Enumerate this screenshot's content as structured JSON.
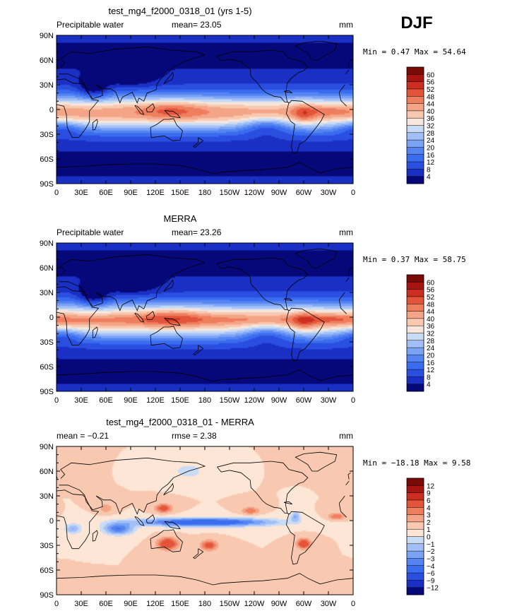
{
  "season": "DJF",
  "chart_data": [
    {
      "type": "heatmap",
      "title": "test_mg4_f2000_0318_01 (yrs 1-5)",
      "left_label": "Precipitable water",
      "center_label": "mean=  23.05",
      "units": "mm",
      "stats": "Min =   0.47 Max =  54.64",
      "field": "model",
      "lat_ticks": [
        "90N",
        "60N",
        "30N",
        "0",
        "30S",
        "60S",
        "90S"
      ],
      "lon_ticks": [
        "0",
        "30E",
        "60E",
        "90E",
        "120E",
        "150E",
        "180",
        "150W",
        "120W",
        "90W",
        "60W",
        "30W",
        "0"
      ],
      "colorbar": {
        "levels": [
          "60",
          "56",
          "52",
          "48",
          "44",
          "40",
          "36",
          "32",
          "28",
          "24",
          "20",
          "16",
          "12",
          "8",
          "4"
        ],
        "colors": [
          "#06087a",
          "#1a2fc4",
          "#2a4fe0",
          "#3a6cf0",
          "#5584f2",
          "#7aa2f5",
          "#a2c0f7",
          "#c9dcf6",
          "#f6e6db",
          "#f8c8b0",
          "#f5a587",
          "#ee7e5e",
          "#e2553a",
          "#cc2f20",
          "#a81510",
          "#7a0a06"
        ]
      }
    },
    {
      "type": "heatmap",
      "title": "MERRA",
      "left_label": "Precipitable water",
      "center_label": "mean=  23.26",
      "units": "mm",
      "stats": "Min =   0.37 Max =  58.75",
      "field": "obs",
      "lat_ticks": [
        "90N",
        "60N",
        "30N",
        "0",
        "30S",
        "60S",
        "90S"
      ],
      "lon_ticks": [
        "0",
        "30E",
        "60E",
        "90E",
        "120E",
        "150E",
        "180",
        "150W",
        "120W",
        "90W",
        "60W",
        "30W",
        "0"
      ],
      "colorbar": {
        "levels": [
          "60",
          "56",
          "52",
          "48",
          "44",
          "40",
          "36",
          "32",
          "28",
          "24",
          "20",
          "16",
          "12",
          "8",
          "4"
        ],
        "colors": [
          "#06087a",
          "#1a2fc4",
          "#2a4fe0",
          "#3a6cf0",
          "#5584f2",
          "#7aa2f5",
          "#a2c0f7",
          "#c9dcf6",
          "#f6e6db",
          "#f8c8b0",
          "#f5a587",
          "#ee7e5e",
          "#e2553a",
          "#cc2f20",
          "#a81510",
          "#7a0a06"
        ]
      }
    },
    {
      "type": "heatmap",
      "title": "test_mg4_f2000_0318_01 - MERRA",
      "left_label": "mean =  −0.21",
      "center_label": "rmse =    2.38",
      "units": "mm",
      "stats": "Min = −18.18 Max =   9.58",
      "field": "diff",
      "lat_ticks": [
        "90N",
        "60N",
        "30N",
        "0",
        "30S",
        "60S",
        "90S"
      ],
      "lon_ticks": [
        "0",
        "30E",
        "60E",
        "90E",
        "120E",
        "150E",
        "180",
        "150W",
        "120W",
        "90W",
        "60W",
        "30W",
        "0"
      ],
      "colorbar": {
        "levels": [
          "12",
          "9",
          "6",
          "4",
          "3",
          "2",
          "1",
          "0",
          "−1",
          "−2",
          "−3",
          "−4",
          "−6",
          "−9",
          "−12"
        ],
        "colors": [
          "#06087a",
          "#1a2fc4",
          "#2a4fe0",
          "#3a6cf0",
          "#5584f2",
          "#7aa2f5",
          "#a2c0f7",
          "#c9dcf6",
          "#fde6d6",
          "#f8c8b0",
          "#f5a587",
          "#ee7e5e",
          "#e2553a",
          "#cc2f20",
          "#a81510",
          "#7a0a06"
        ]
      }
    }
  ]
}
